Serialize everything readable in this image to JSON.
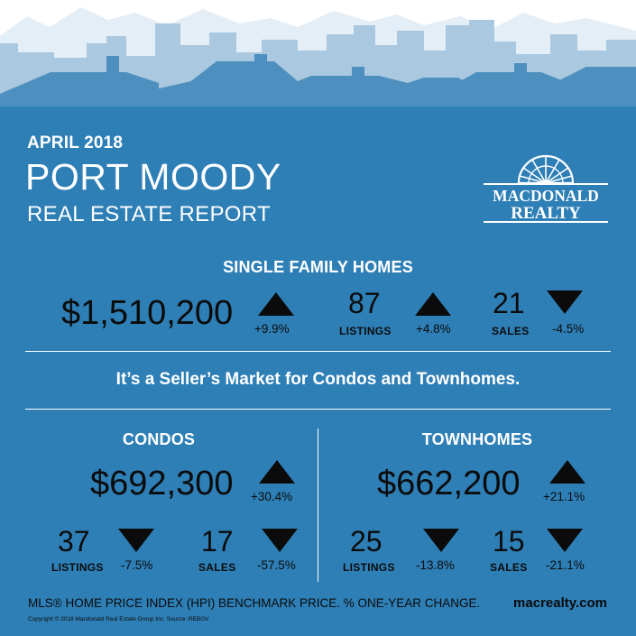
{
  "header": {
    "date": "APRIL 2018",
    "city": "PORT MOODY",
    "subtitle": "REAL ESTATE REPORT"
  },
  "logo": {
    "line1": "MACDONALD",
    "line2": "REALTY"
  },
  "single_family": {
    "title": "SINGLE FAMILY HOMES",
    "price": "$1,510,200",
    "price_change": "+9.9%",
    "price_trend": "up",
    "listings": "87",
    "listings_label": "LISTINGS",
    "listings_change": "+4.8%",
    "listings_trend": "up",
    "sales": "21",
    "sales_label": "SALES",
    "sales_change": "-4.5%",
    "sales_trend": "down"
  },
  "headline": "It’s a Seller’s Market for Condos and Townhomes.",
  "condos": {
    "title": "CONDOS",
    "price": "$692,300",
    "price_change": "+30.4%",
    "price_trend": "up",
    "listings": "37",
    "listings_label": "LISTINGS",
    "listings_change": "-7.5%",
    "listings_trend": "down",
    "sales": "17",
    "sales_label": "SALES",
    "sales_change": "-57.5%",
    "sales_trend": "down"
  },
  "townhomes": {
    "title": "TOWNHOMES",
    "price": "$662,200",
    "price_change": "+21.1%",
    "price_trend": "up",
    "listings": "25",
    "listings_label": "LISTINGS",
    "listings_change": "-13.8%",
    "listings_trend": "down",
    "sales": "15",
    "sales_label": "SALES",
    "sales_change": "-21.1%",
    "sales_trend": "down"
  },
  "footer": {
    "note": "MLS® HOME PRICE INDEX (HPI) BENCHMARK PRICE.  % ONE-YEAR CHANGE.",
    "url": "macrealty.com",
    "copyright": "Copyright © 2018 Macdonald Real Estate Group Inc. Source: REBGV"
  },
  "colors": {
    "background": "#2e7fb6",
    "mountains": "#e4eef6",
    "skyline_buildings": "#aac8df",
    "houses": "#4d8fbe",
    "text_dark": "#0b0b0b",
    "text_light": "#ffffff"
  }
}
